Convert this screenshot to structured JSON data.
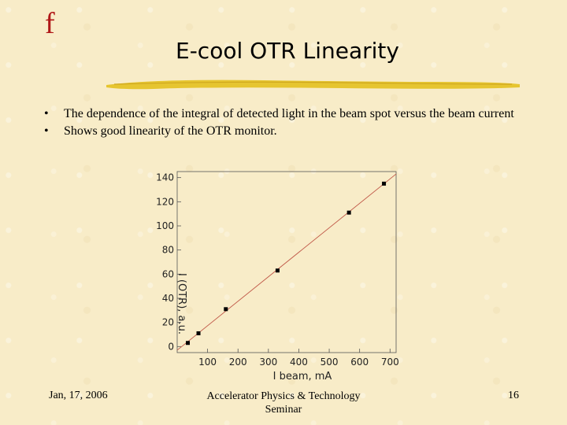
{
  "header": {
    "logo": "f",
    "title": "E-cool OTR Linearity"
  },
  "bullets": [
    {
      "marker": "•",
      "text": "The dependence of the integral of detected light in the beam spot versus the beam current"
    },
    {
      "marker": "•",
      "text": "Shows good linearity of the OTR monitor."
    }
  ],
  "chart_data": {
    "type": "scatter",
    "title": "",
    "xlabel": "I beam, mA",
    "ylabel": "I (OTR), a.u.",
    "xlim": [
      0,
      720
    ],
    "ylim": [
      -5,
      145
    ],
    "xticks": [
      100,
      200,
      300,
      400,
      500,
      600,
      700
    ],
    "yticks": [
      0,
      20,
      40,
      60,
      80,
      100,
      120,
      140
    ],
    "series": [
      {
        "points": [
          {
            "x": 35,
            "y": 3
          },
          {
            "x": 70,
            "y": 11
          },
          {
            "x": 160,
            "y": 31
          },
          {
            "x": 330,
            "y": 63
          },
          {
            "x": 565,
            "y": 111
          },
          {
            "x": 680,
            "y": 135
          }
        ],
        "marker_color": "#000000"
      }
    ],
    "fit_line": {
      "x": [
        0,
        720
      ],
      "y": [
        -3,
        143
      ],
      "color": "#c05848"
    },
    "grid": false,
    "legend": "none"
  },
  "footer": {
    "date": "Jan, 17, 2006",
    "center": "Accelerator Physics & Technology Seminar",
    "page": "16"
  }
}
